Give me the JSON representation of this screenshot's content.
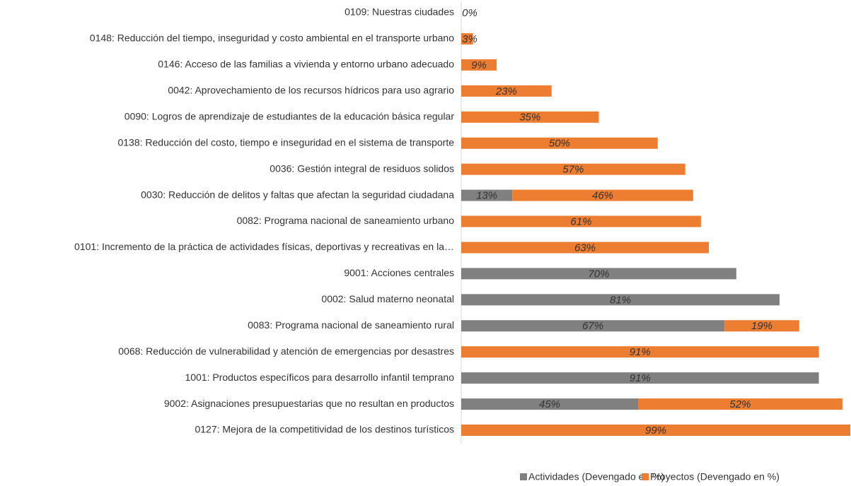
{
  "chart_data": {
    "type": "stacked-horizontal-bar",
    "categories": [
      "0109: Nuestras ciudades",
      "0148: Reducción del tiempo, inseguridad y costo ambiental en el transporte urbano",
      "0146: Acceso de las familias a vivienda y entorno urbano adecuado",
      "0042: Aprovechamiento de los recursos hídricos para uso agrario",
      "0090: Logros de aprendizaje de estudiantes de la educación básica regular",
      "0138: Reducción del costo, tiempo e inseguridad en el sistema de transporte",
      "0036: Gestión integral de residuos solidos",
      "0030: Reducción de delitos y faltas que afectan la seguridad ciudadana",
      "0082: Programa nacional de saneamiento urbano",
      "0101: Incremento de la práctica de actividades físicas, deportivas y recreativas en la…",
      "9001: Acciones centrales",
      "0002: Salud materno neonatal",
      "0083: Programa nacional de saneamiento rural",
      "0068: Reducción de vulnerabilidad y atención de emergencias por desastres",
      "1001: Productos específicos para desarrollo infantil temprano",
      "9002: Asignaciones presupuestarias que no resultan en productos",
      "0127: Mejora de la competitividad de los destinos turísticos"
    ],
    "series": [
      {
        "name": "Actividades (Devengado en %)",
        "color": "#808080",
        "values": [
          0,
          0,
          0,
          0,
          0,
          0,
          0,
          13,
          0,
          0,
          70,
          81,
          67,
          0,
          91,
          45,
          0
        ],
        "value_labels": [
          null,
          null,
          null,
          null,
          null,
          null,
          null,
          "13%",
          null,
          null,
          "70%",
          "81%",
          "67%",
          null,
          "91%",
          "45%",
          null
        ]
      },
      {
        "name": "Proyectos (Devengado en %)",
        "color": "#ed7d31",
        "values": [
          0,
          3,
          9,
          23,
          35,
          50,
          57,
          46,
          61,
          63,
          0,
          0,
          19,
          91,
          0,
          52,
          99
        ],
        "value_labels": [
          "0%",
          "3%",
          "9%",
          "23%",
          "35%",
          "50%",
          "57%",
          "46%",
          "61%",
          "63%",
          null,
          null,
          "19%",
          "91%",
          null,
          "52%",
          "99%"
        ]
      }
    ],
    "legend": "bottom"
  }
}
